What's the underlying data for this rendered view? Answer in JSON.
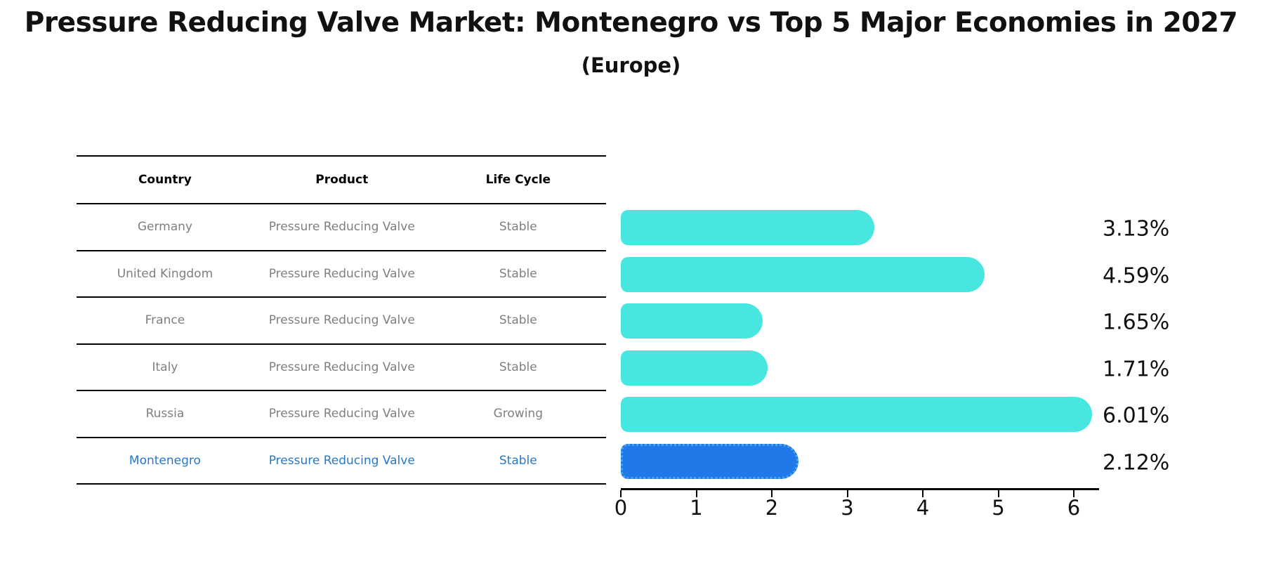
{
  "title": "Pressure Reducing Valve Market: Montenegro vs Top 5 Major Economies in 2027",
  "subtitle": "(Europe)",
  "table": {
    "headers": [
      "Country",
      "Product",
      "Life Cycle"
    ],
    "rows": [
      {
        "country": "Germany",
        "product": "Pressure Reducing Valve",
        "life_cycle": "Stable",
        "highlight": false
      },
      {
        "country": "United Kingdom",
        "product": "Pressure Reducing Valve",
        "life_cycle": "Stable",
        "highlight": false
      },
      {
        "country": "France",
        "product": "Pressure Reducing Valve",
        "life_cycle": "Stable",
        "highlight": false
      },
      {
        "country": "Italy",
        "product": "Pressure Reducing Valve",
        "life_cycle": "Stable",
        "highlight": false
      },
      {
        "country": "Russia",
        "product": "Pressure Reducing Valve",
        "life_cycle": "Growing",
        "highlight": false
      },
      {
        "country": "Montenegro",
        "product": "Pressure Reducing Valve",
        "life_cycle": "Stable",
        "highlight": true
      }
    ]
  },
  "chart_data": {
    "type": "bar",
    "orientation": "horizontal",
    "categories": [
      "Germany",
      "United Kingdom",
      "France",
      "Italy",
      "Russia",
      "Montenegro"
    ],
    "values": [
      3.13,
      4.59,
      1.65,
      1.71,
      6.01,
      2.12
    ],
    "labels": [
      "3.13%",
      "4.59%",
      "1.65%",
      "1.71%",
      "6.01%",
      "2.12%"
    ],
    "highlight_index": 5,
    "xticks": [
      0,
      1,
      2,
      3,
      4,
      5,
      6
    ],
    "xlim": [
      0,
      6.33
    ],
    "grid": false,
    "legend": false,
    "xlabel": "",
    "ylabel": ""
  },
  "colors": {
    "bar": "#47E6E0",
    "highlight_bar": "#2178E8",
    "highlight_text": "#2878C8",
    "table_text": "#7f7f7f",
    "axis": "#000000"
  }
}
